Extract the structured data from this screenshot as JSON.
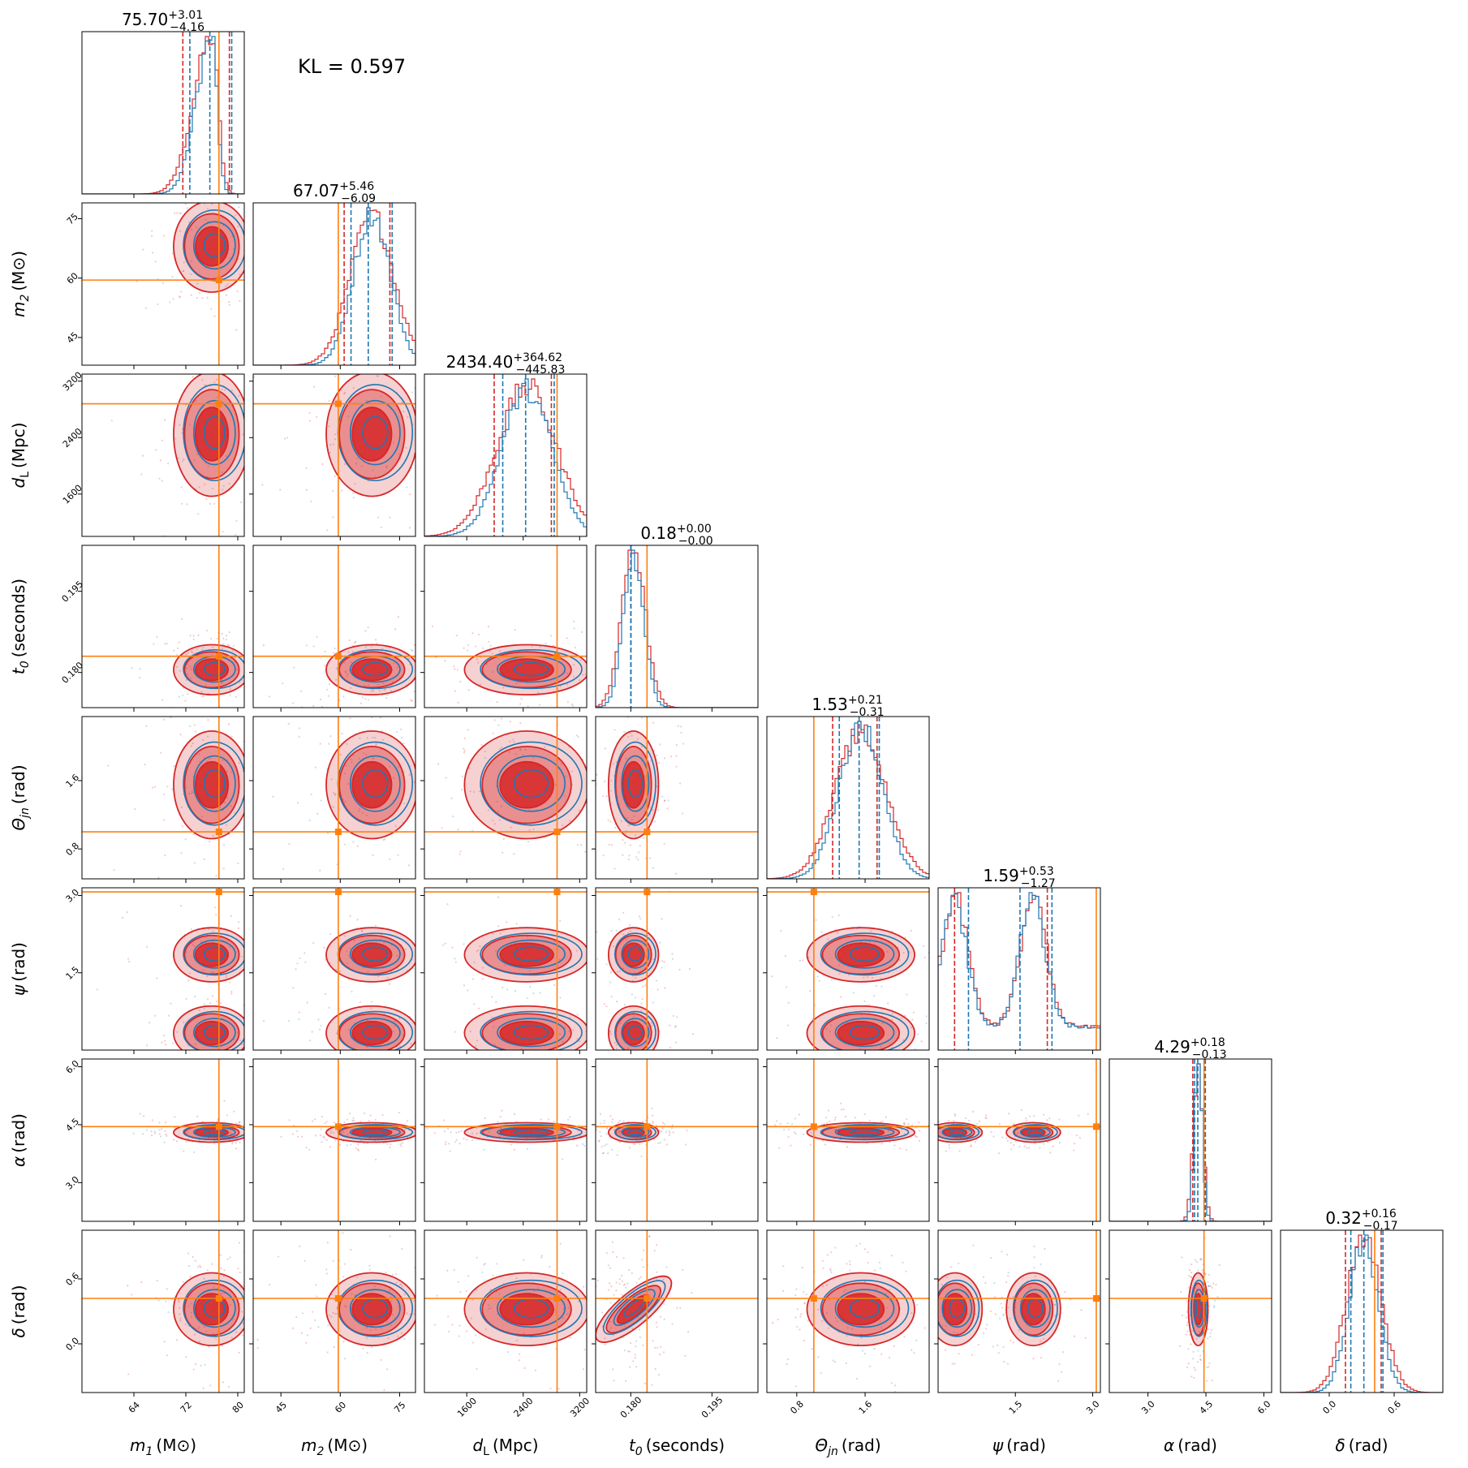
{
  "chart_data": {
    "type": "corner",
    "kl_text": "KL = 0.597",
    "series": [
      {
        "name": "",
        "color": "#d62728"
      },
      {
        "name": "",
        "color": "#1f77b4"
      }
    ],
    "truth_color": "#ff7f0e",
    "parameters": [
      {
        "id": "m1",
        "label_sym": "m",
        "label_sub": "1",
        "label_unit": "(M⊙)",
        "range": [
          56,
          81
        ],
        "ticks": [
          64,
          72,
          80
        ],
        "tick_labels": [
          "64",
          "72",
          "80"
        ],
        "title_value": "75.70",
        "title_plus": "+3.01",
        "title_minus": "−4.16",
        "truth": 77.1,
        "mean": 76.0,
        "sd": 2.8,
        "skew": "left"
      },
      {
        "id": "m2",
        "label_sym": "m",
        "label_sub": "2",
        "label_unit": "(M⊙)",
        "range": [
          38,
          79
        ],
        "ticks": [
          45,
          60,
          75
        ],
        "tick_labels": [
          "45",
          "60",
          "75"
        ],
        "title_value": "67.07",
        "title_plus": "+5.46",
        "title_minus": "−6.09",
        "truth": 59.5,
        "mean": 68.0,
        "sd": 5.5
      },
      {
        "id": "dL",
        "label_sym": "d",
        "label_sub": "L",
        "label_unit": "(Mpc)",
        "range": [
          1000,
          3300
        ],
        "ticks": [
          1600,
          2400,
          3200
        ],
        "tick_labels": [
          "1600",
          "2400",
          "3200"
        ],
        "title_value": "2434.40",
        "title_plus": "+364.62",
        "title_minus": "−445.83",
        "truth": 2880,
        "mean": 2450,
        "sd": 420
      },
      {
        "id": "t0",
        "label_sym": "t",
        "label_sub": "0",
        "label_unit": "(seconds)",
        "range": [
          0.1735,
          0.2035
        ],
        "ticks": [
          0.18,
          0.195
        ],
        "tick_labels": [
          "0.180",
          "0.195"
        ],
        "title_value": "0.18",
        "title_plus": "+0.00",
        "title_minus": "−0.00",
        "truth": 0.183,
        "mean": 0.1805,
        "sd": 0.0022
      },
      {
        "id": "theta",
        "label_sym": "Θ",
        "label_sub": "jn",
        "label_unit": "(rad)",
        "range": [
          0.45,
          2.35
        ],
        "ticks": [
          0.8,
          1.6
        ],
        "tick_labels": [
          "0.8",
          "1.6"
        ],
        "title_value": "1.53",
        "title_plus": "+0.21",
        "title_minus": "−0.31",
        "truth": 1.0,
        "mean": 1.55,
        "sd": 0.3
      },
      {
        "id": "psi",
        "label_sym": "ψ",
        "label_sub": "",
        "label_unit": "(rad)",
        "range": [
          0,
          3.15
        ],
        "ticks": [
          1.5,
          3.0
        ],
        "tick_labels": [
          "1.5",
          "3.0"
        ],
        "title_value": "1.59",
        "title_plus": "+0.53",
        "title_minus": "−1.27",
        "truth": 3.07,
        "modes": [
          0.33,
          1.85
        ],
        "sd": 0.25
      },
      {
        "id": "alpha",
        "label_sym": "α",
        "label_sub": "",
        "label_unit": "(rad)",
        "range": [
          2.0,
          6.2
        ],
        "ticks": [
          3.0,
          4.5,
          6.0
        ],
        "tick_labels": [
          "3.0",
          "4.5",
          "6.0"
        ],
        "title_value": "4.29",
        "title_plus": "+0.18",
        "title_minus": "−0.13",
        "truth": 4.45,
        "mean": 4.3,
        "sd": 0.12
      },
      {
        "id": "delta",
        "label_sym": "δ",
        "label_sub": "",
        "label_unit": "(rad)",
        "range": [
          -0.45,
          1.05
        ],
        "ticks": [
          0.0,
          0.6
        ],
        "tick_labels": [
          "0.0",
          "0.6"
        ],
        "title_value": "0.32",
        "title_plus": "+0.16",
        "title_minus": "−0.17",
        "truth": 0.42,
        "mean": 0.32,
        "sd": 0.16
      }
    ]
  }
}
